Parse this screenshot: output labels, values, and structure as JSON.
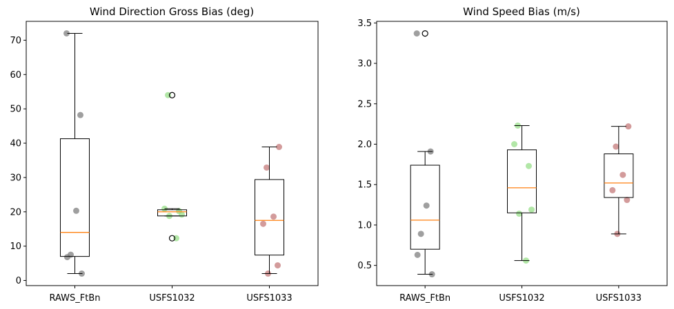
{
  "chart_data": [
    {
      "type": "box",
      "title": "Wind Direction Gross Bias (deg)",
      "xlabel": "",
      "ylabel": "",
      "categories": [
        "RAWS_FtBn",
        "USFS1032",
        "USFS1033"
      ],
      "ylim": [
        -1.5,
        75.5
      ],
      "yticks": [
        0,
        10,
        20,
        30,
        40,
        50,
        60,
        70
      ],
      "ytick_labels": [
        "0",
        "10",
        "20",
        "30",
        "40",
        "50",
        "60",
        "70"
      ],
      "grid": false,
      "boxes": [
        {
          "category": "RAWS_FtBn",
          "whisker_low": 2,
          "q1": 7,
          "median": 14,
          "q3": 41.3,
          "whisker_high": 72,
          "outliers": []
        },
        {
          "category": "USFS1032",
          "whisker_low": 18.8,
          "q1": 18.8,
          "median": 20.0,
          "q3": 20.6,
          "whisker_high": 20.9,
          "outliers": [
            54,
            12.3
          ]
        },
        {
          "category": "USFS1033",
          "whisker_low": 2,
          "q1": 7.4,
          "median": 17.5,
          "q3": 29.4,
          "whisker_high": 38.9,
          "outliers": []
        }
      ],
      "points": [
        {
          "category": "RAWS_FtBn",
          "color": "#7f7f7f",
          "values": [
            72,
            48.2,
            20.3,
            7.5,
            6.8,
            2
          ]
        },
        {
          "category": "USFS1032",
          "color": "#98df8a",
          "values": [
            54,
            20.9,
            20.2,
            19.2,
            18.8,
            12.3
          ]
        },
        {
          "category": "USFS1033",
          "color": "#c47a7a",
          "values": [
            38.9,
            32.9,
            18.6,
            16.5,
            4.4,
            2
          ]
        }
      ],
      "colors": {
        "box": "#000000",
        "median": "#ff7f0e"
      }
    },
    {
      "type": "box",
      "title": "Wind Speed Bias (m/s)",
      "xlabel": "",
      "ylabel": "",
      "categories": [
        "RAWS_FtBn",
        "USFS1032",
        "USFS1033"
      ],
      "ylim": [
        0.25,
        3.52
      ],
      "yticks": [
        0.5,
        1.0,
        1.5,
        2.0,
        2.5,
        3.0,
        3.5
      ],
      "ytick_labels": [
        "0.5",
        "1.0",
        "1.5",
        "2.0",
        "2.5",
        "3.0",
        "3.5"
      ],
      "grid": false,
      "boxes": [
        {
          "category": "RAWS_FtBn",
          "whisker_low": 0.39,
          "q1": 0.7,
          "median": 1.06,
          "q3": 1.74,
          "whisker_high": 1.91,
          "outliers": [
            3.37
          ]
        },
        {
          "category": "USFS1032",
          "whisker_low": 0.56,
          "q1": 1.15,
          "median": 1.46,
          "q3": 1.93,
          "whisker_high": 2.23,
          "outliers": []
        },
        {
          "category": "USFS1033",
          "whisker_low": 0.89,
          "q1": 1.34,
          "median": 1.52,
          "q3": 1.88,
          "whisker_high": 2.22,
          "outliers": []
        }
      ],
      "points": [
        {
          "category": "RAWS_FtBn",
          "color": "#7f7f7f",
          "values": [
            3.37,
            1.91,
            1.24,
            0.89,
            0.63,
            0.39
          ]
        },
        {
          "category": "USFS1032",
          "color": "#98df8a",
          "values": [
            2.23,
            2.0,
            1.73,
            1.19,
            1.14,
            0.56
          ]
        },
        {
          "category": "USFS1033",
          "color": "#c47a7a",
          "values": [
            2.22,
            1.97,
            1.62,
            1.43,
            1.31,
            0.89
          ]
        }
      ],
      "colors": {
        "box": "#000000",
        "median": "#ff7f0e"
      }
    }
  ]
}
